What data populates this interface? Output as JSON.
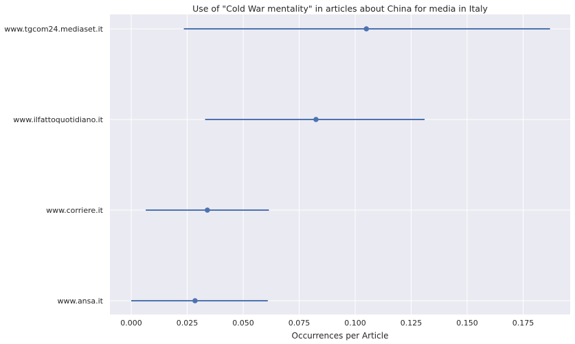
{
  "chart_data": {
    "type": "point_errorbar",
    "orientation": "horizontal",
    "title": "Use of \"Cold War mentality\" in articles about China for media in Italy",
    "xlabel": "Occurrences per Article",
    "ylabel": "",
    "xlim": [
      -0.0095,
      0.196
    ],
    "xticks": [
      0.0,
      0.025,
      0.05,
      0.075,
      0.1,
      0.125,
      0.15,
      0.175
    ],
    "xtick_labels": [
      "0.000",
      "0.025",
      "0.050",
      "0.075",
      "0.100",
      "0.125",
      "0.150",
      "0.175"
    ],
    "grid": true,
    "colors": {
      "background": "#eaeaf2",
      "grid": "#ffffff",
      "series": "#4c72b0"
    },
    "categories": [
      "www.tgcom24.mediaset.it",
      "www.ilfattoquotidiano.it",
      "www.corriere.it",
      "www.ansa.it"
    ],
    "series": [
      {
        "points": [
          {
            "category": "www.tgcom24.mediaset.it",
            "value": 0.105,
            "ci": [
              0.0235,
              0.187
            ]
          },
          {
            "category": "www.ilfattoquotidiano.it",
            "value": 0.0825,
            "ci": [
              0.033,
              0.131
            ]
          },
          {
            "category": "www.corriere.it",
            "value": 0.034,
            "ci": [
              0.0065,
              0.0615
            ]
          },
          {
            "category": "www.ansa.it",
            "value": 0.0285,
            "ci": [
              0.0,
              0.061
            ]
          }
        ]
      }
    ]
  }
}
